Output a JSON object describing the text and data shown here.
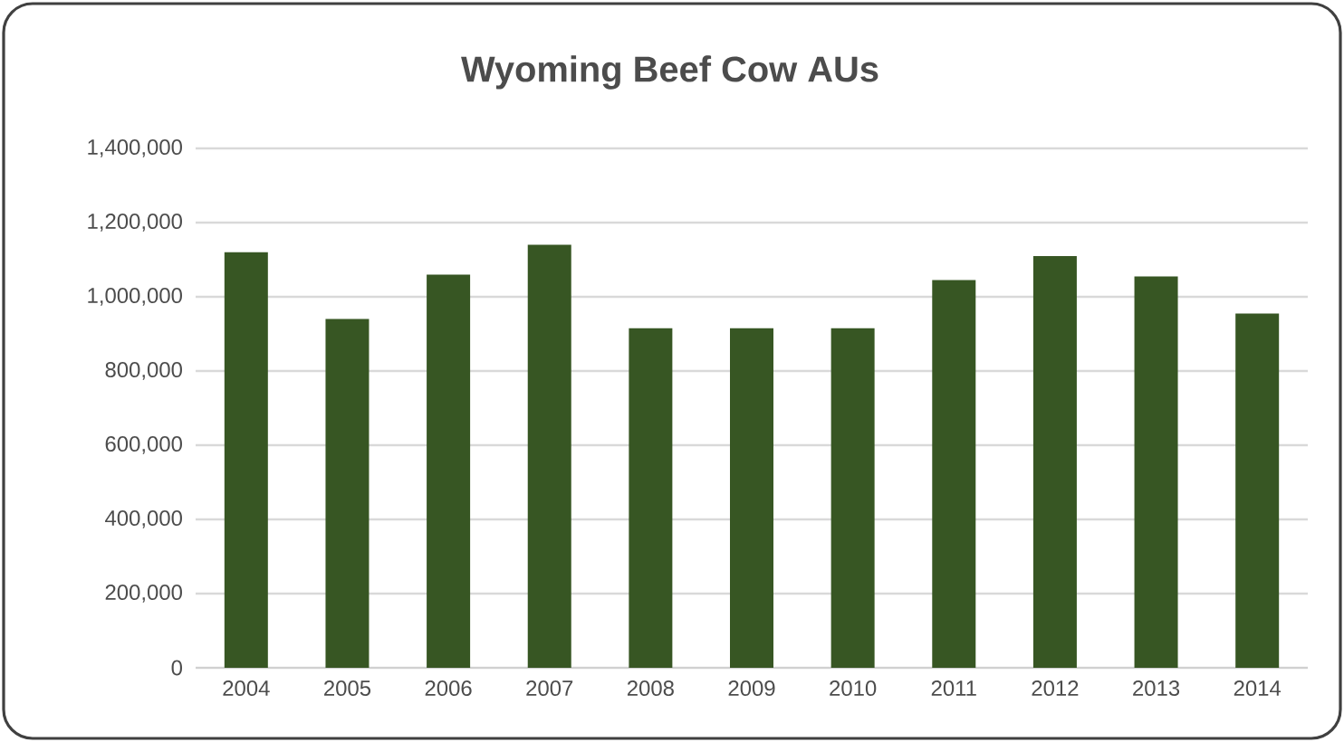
{
  "chart_data": {
    "type": "bar",
    "title": "Wyoming Beef Cow AUs",
    "categories": [
      "2004",
      "2005",
      "2006",
      "2007",
      "2008",
      "2009",
      "2010",
      "2011",
      "2012",
      "2013",
      "2014"
    ],
    "values": [
      1120000,
      940000,
      1060000,
      1140000,
      915000,
      915000,
      915000,
      1045000,
      1110000,
      1055000,
      955000
    ],
    "color": "#375623",
    "ylim": [
      0,
      1400000
    ],
    "yticks": [
      0,
      {
        "value": 200000,
        "label": "200,000"
      },
      {
        "value": 400000,
        "label": "400,000"
      },
      {
        "value": 600000,
        "label": "600,000"
      },
      {
        "value": 800000,
        "label": "800,000"
      },
      {
        "value": 1000000,
        "label": "1,000,000"
      },
      {
        "value": 1200000,
        "label": "1,200,000"
      },
      {
        "value": 1400000,
        "label": "1,400,000"
      }
    ],
    "grid": "y"
  }
}
